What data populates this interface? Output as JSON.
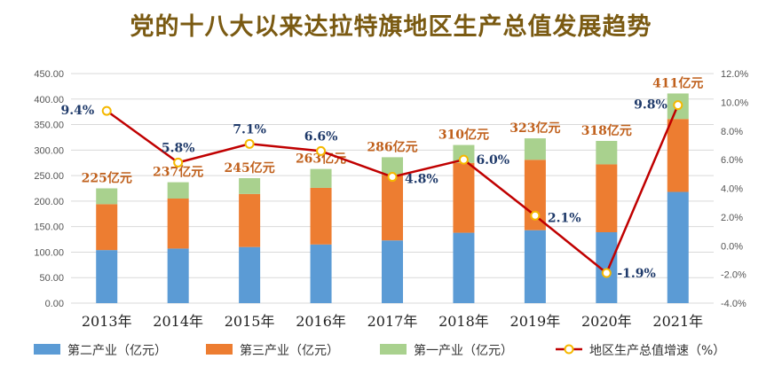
{
  "chart_data": {
    "type": "bar+line",
    "title": "党的十八大以来达拉特旗地区生产总值发展趋势",
    "categories": [
      "2013年",
      "2014年",
      "2015年",
      "2016年",
      "2017年",
      "2018年",
      "2019年",
      "2020年",
      "2021年"
    ],
    "series": [
      {
        "name": "第二产业（亿元）",
        "type": "bar",
        "axis": "left",
        "color": "#5b9bd5",
        "values": [
          104,
          107,
          110,
          115,
          123,
          138,
          143,
          139,
          218
        ]
      },
      {
        "name": "第三产业（亿元）",
        "type": "bar",
        "axis": "left",
        "color": "#ed7d31",
        "values": [
          90,
          98,
          104,
          111,
          128,
          137,
          138,
          133,
          143
        ]
      },
      {
        "name": "第一产业（亿元）",
        "type": "bar",
        "axis": "left",
        "color": "#a9d18e",
        "values": [
          31,
          32,
          31,
          37,
          35,
          35,
          42,
          46,
          50
        ]
      },
      {
        "name": "地区生产总值增速（%）",
        "type": "line",
        "axis": "right",
        "color": "#c00000",
        "values": [
          9.4,
          5.8,
          7.1,
          6.6,
          4.8,
          6.0,
          2.1,
          -1.9,
          9.8
        ]
      }
    ],
    "total_labels": [
      "225亿元",
      "237亿元",
      "245亿元",
      "263亿元",
      "286亿元",
      "310亿元",
      "323亿元",
      "318亿元",
      "411亿元"
    ],
    "rate_labels": [
      "9.4%",
      "5.8%",
      "7.1%",
      "6.6%",
      "4.8%",
      "6.0%",
      "2.1%",
      "-1.9%",
      "9.8%"
    ],
    "y_left": {
      "range": [
        0,
        450
      ],
      "step": 50,
      "tick_labels": [
        "0.00",
        "50.00",
        "100.00",
        "150.00",
        "200.00",
        "250.00",
        "300.00",
        "350.00",
        "400.00",
        "450.00"
      ]
    },
    "y_right": {
      "range": [
        -4,
        12
      ],
      "step": 2,
      "tick_labels": [
        "-4.0%",
        "-2.0%",
        "0.0%",
        "2.0%",
        "4.0%",
        "6.0%",
        "8.0%",
        "10.0%",
        "12.0%"
      ]
    },
    "grid": true,
    "legend_position": "bottom"
  }
}
